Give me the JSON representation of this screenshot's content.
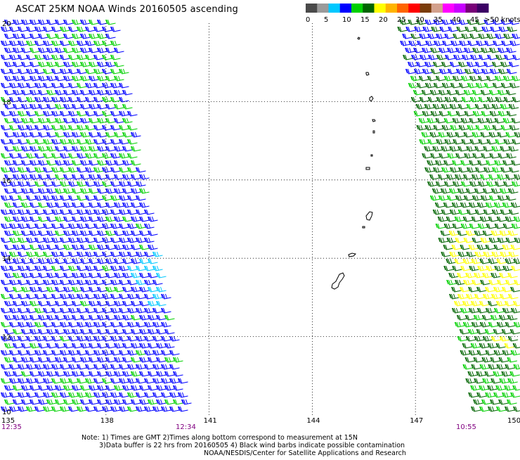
{
  "title": "ASCAT 25KM NOAA Winds 20160505 ascending",
  "legend": {
    "colors": [
      "#4a4a4a",
      "#9a9a9a",
      "#00c8ff",
      "#0000ff",
      "#00d000",
      "#006400",
      "#ffff00",
      "#ffb400",
      "#ff6400",
      "#ff0000",
      "#7a3c0a",
      "#d2a08c",
      "#ff00ff",
      "#c800ff",
      "#780078",
      "#3c0064"
    ],
    "labels": [
      "0",
      "5",
      "10",
      "15",
      "20",
      "25",
      "30",
      "35",
      "40",
      "45",
      ">50 knots"
    ]
  },
  "axes": {
    "lon_ticks": [
      "135",
      "138",
      "141",
      "144",
      "147",
      "150"
    ],
    "lat_ticks": [
      "20",
      "18",
      "16",
      "14",
      "12",
      "10"
    ],
    "lon_range": [
      135,
      150
    ],
    "lat_range": [
      10,
      20
    ]
  },
  "pass_times": [
    "12:35",
    "12:34",
    "10:55"
  ],
  "time_color": "#800080",
  "swaths": {
    "west_colors": [
      "#0000ff",
      "#00d000",
      "#00c8ff"
    ],
    "east_colors": [
      "#00d000",
      "#006400",
      "#ffff00",
      "#0000ff"
    ]
  },
  "notes": {
    "line1": "Note: 1) Times are GMT 2)Times along bottom correspond to measurement at 15N",
    "line2": "3)Data buffer is 22 hrs from 20160505 4) Black wind barbs indicate possible contamination",
    "line3": "NOAA/NESDIS/Center for Satellite Applications and Research"
  }
}
